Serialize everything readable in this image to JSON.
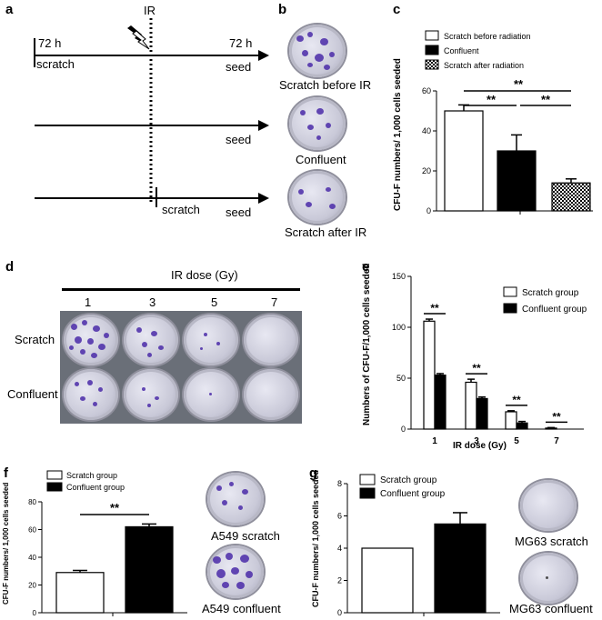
{
  "panel_a": {
    "letter": "a",
    "ir_label": "IR",
    "left_time": "72 h",
    "right_time": "72 h",
    "scratch_label_top": "scratch",
    "seed_labels": [
      "seed",
      "seed",
      "seed"
    ],
    "scratch_label_bottom": "scratch"
  },
  "panel_b": {
    "letter": "b",
    "labels": [
      "Scratch before IR",
      "Confluent",
      "Scratch after IR"
    ]
  },
  "panel_d": {
    "letter": "d",
    "title": "IR dose (Gy)",
    "doses": [
      "1",
      "3",
      "5",
      "7"
    ],
    "rows": [
      "Scratch",
      "Confluent"
    ]
  },
  "panel_f_photos": [
    "A549 scratch",
    "A549 confluent"
  ],
  "panel_g_photos": [
    "MG63 scratch",
    "MG63 confluent"
  ],
  "chart_data": [
    {
      "panel": "c",
      "type": "bar",
      "categories": [
        "Scratch before radiation",
        "Confluent",
        "Scratch after radiation"
      ],
      "values": [
        50,
        30,
        14
      ],
      "errors": [
        3,
        8,
        2
      ],
      "legend": [
        "Scratch  before radiation",
        "Confluent",
        "Scratch after radiation"
      ],
      "ylabel": "CFU-F numbers/ 1,000 cells seeded",
      "ylim": [
        0,
        60
      ],
      "yticks": [
        "0",
        "20",
        "40",
        "60"
      ],
      "significance": [
        "**",
        "**",
        "**"
      ],
      "fills": [
        "#ffffff",
        "#000000",
        "checker"
      ]
    },
    {
      "panel": "e",
      "type": "bar",
      "categories": [
        "1",
        "3",
        "5",
        "7"
      ],
      "series": [
        {
          "name": "Scratch group",
          "values": [
            106,
            46,
            17,
            1
          ],
          "errors": [
            2,
            3,
            1,
            0.5
          ]
        },
        {
          "name": "Confluent group",
          "values": [
            53,
            30,
            6,
            0
          ],
          "errors": [
            1.5,
            1.5,
            1.5,
            0
          ]
        }
      ],
      "xlabel": "IR dose (Gy)",
      "ylabel": "Numbers of CFU-F/1,000 cells seeded",
      "ylim": [
        0,
        150
      ],
      "yticks": [
        "0",
        "50",
        "100",
        "150"
      ],
      "significance": [
        "**",
        "**",
        "**",
        "**"
      ]
    },
    {
      "panel": "f",
      "type": "bar",
      "categories": [
        "Scratch group",
        "Confluent group"
      ],
      "values": [
        29,
        62
      ],
      "errors": [
        1.5,
        2
      ],
      "legend": [
        "Scratch group",
        "Confluent group"
      ],
      "ylabel": "CFU-F numbers/ 1,000 cells seeded",
      "ylim": [
        0,
        80
      ],
      "yticks": [
        "0",
        "20",
        "40",
        "60",
        "80"
      ],
      "significance": [
        "**"
      ]
    },
    {
      "panel": "g",
      "type": "bar",
      "categories": [
        "Scratch group",
        "Confluent group"
      ],
      "values": [
        4,
        5.5
      ],
      "errors": [
        0,
        0.7
      ],
      "legend": [
        "Scratch group",
        "Confluent group"
      ],
      "ylabel": "CFU-F numbers/ 1,000 cells seeded",
      "ylim": [
        0,
        8
      ],
      "yticks": [
        "0",
        "2",
        "4",
        "6",
        "8"
      ]
    }
  ]
}
